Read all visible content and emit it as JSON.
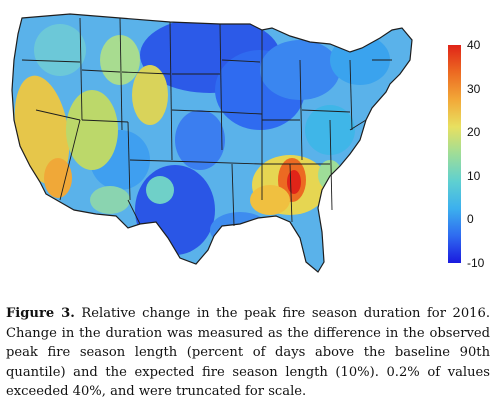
{
  "figure": {
    "caption_label": "Figure 3.",
    "caption_text": " Relative change in the peak fire season duration for 2016. Change in the duration was measured as the difference in the observed peak fire season length (percent of days above the baseline 90th quantile) and the expected fire season length (10%). 0.2% of values exceeded 40%, and were truncated for scale."
  },
  "map": {
    "region": "contiguous United States",
    "colorbar": {
      "min": -10,
      "max": 40,
      "ticks": [
        "40",
        "30",
        "20",
        "10",
        "0",
        "-10"
      ],
      "colors": [
        "#1a1adf",
        "#2f6bf0",
        "#3cb0ee",
        "#5fd0d0",
        "#9edd98",
        "#e8e060",
        "#f2a838",
        "#ec6a22",
        "#e02418"
      ]
    },
    "hotspots": {
      "california": "orange",
      "great_basin": "yellow",
      "northern_rockies": "yellow-orange",
      "southeast": "red",
      "northern_plains": "blue",
      "texas": "blue",
      "upper_midwest": "blue"
    }
  }
}
